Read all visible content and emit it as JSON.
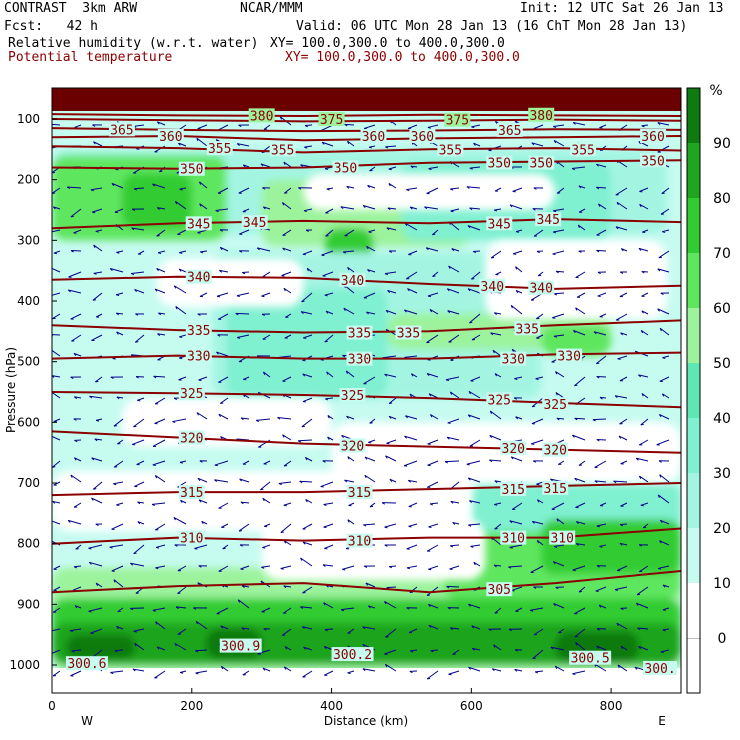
{
  "header": {
    "model": "CONTRAST  3km ARW",
    "center": "NCAR/MMM",
    "init": "Init: 12 UTC Sat 26 Jan 13",
    "fcst": "Fcst:   42 h",
    "valid": "Valid: 06 UTC Mon 28 Jan 13 (16 ChT Mon 28 Jan 13)",
    "field1": "Relative humidity (w.r.t. water)",
    "field1_xy": "XY= 100.0,300.0 to 400.0,300.0",
    "field2": "Potential temperature",
    "field2_xy": "XY= 100.0,300.0 to 400.0,300.0"
  },
  "colors": {
    "isentrope": "#8b0000",
    "wind": "#00008b",
    "rh_scale": [
      "#ffffff",
      "#c6fbf0",
      "#a3f5e2",
      "#7ff0d0",
      "#5fe6b5",
      "#9cf39c",
      "#5fe65f",
      "#31cc31",
      "#1fa51f",
      "#0f7a0f"
    ]
  },
  "chart_data": {
    "type": "heatmap",
    "xlabel": "Distance (km)",
    "ylabel": "Pressure (hPa)",
    "xlim": [
      0,
      900
    ],
    "ylim": [
      1000,
      50
    ],
    "x_ticks": [
      0,
      200,
      400,
      600,
      800
    ],
    "y_ticks": [
      100,
      200,
      300,
      400,
      500,
      600,
      700,
      800,
      900,
      1000
    ],
    "x_end_labels": {
      "left": "W",
      "right": "E"
    },
    "colorbar": {
      "unit": "%",
      "ticks": [
        0,
        10,
        20,
        30,
        40,
        50,
        60,
        70,
        80,
        90
      ]
    },
    "isentropes": [
      {
        "theta": 380,
        "p": [
          92,
          94,
          95,
          93,
          94,
          95
        ]
      },
      {
        "theta": 375,
        "p": [
          100,
          102,
          104,
          103,
          101,
          103
        ]
      },
      {
        "theta": 365,
        "p": [
          115,
          118,
          120,
          119,
          117,
          118
        ]
      },
      {
        "theta": 360,
        "p": [
          130,
          128,
          135,
          132,
          130,
          128
        ]
      },
      {
        "theta": 355,
        "p": [
          145,
          148,
          155,
          150,
          148,
          152
        ]
      },
      {
        "theta": 350,
        "p": [
          180,
          182,
          180,
          172,
          170,
          168
        ]
      },
      {
        "theta": 345,
        "p": [
          280,
          272,
          268,
          272,
          265,
          270
        ]
      },
      {
        "theta": 340,
        "p": [
          365,
          360,
          362,
          372,
          380,
          375
        ]
      },
      {
        "theta": 335,
        "p": [
          440,
          448,
          452,
          450,
          440,
          432
        ]
      },
      {
        "theta": 330,
        "p": [
          495,
          490,
          495,
          495,
          488,
          485
        ]
      },
      {
        "theta": 325,
        "p": [
          550,
          552,
          555,
          560,
          568,
          575
        ]
      },
      {
        "theta": 320,
        "p": [
          615,
          625,
          635,
          640,
          645,
          650
        ]
      },
      {
        "theta": 315,
        "p": [
          720,
          715,
          715,
          710,
          705,
          700
        ]
      },
      {
        "theta": 310,
        "p": [
          800,
          790,
          795,
          790,
          790,
          775
        ]
      },
      {
        "theta": 305,
        "p": [
          880,
          870,
          865,
          880,
          865,
          845
        ]
      }
    ],
    "contour_labels": [
      {
        "text": "380",
        "x": 300,
        "p": 94,
        "boxed": true
      },
      {
        "text": "375",
        "x": 400,
        "p": 100,
        "boxed": true
      },
      {
        "text": "375",
        "x": 580,
        "p": 101,
        "boxed": true
      },
      {
        "text": "380",
        "x": 700,
        "p": 93,
        "boxed": true
      },
      {
        "text": "365",
        "x": 100,
        "p": 117,
        "boxed": false
      },
      {
        "text": "360",
        "x": 170,
        "p": 128,
        "boxed": false
      },
      {
        "text": "360",
        "x": 460,
        "p": 128,
        "boxed": false
      },
      {
        "text": "360",
        "x": 530,
        "p": 128,
        "boxed": false
      },
      {
        "text": "365",
        "x": 655,
        "p": 118,
        "boxed": false
      },
      {
        "text": "360",
        "x": 860,
        "p": 128,
        "boxed": false
      },
      {
        "text": "355",
        "x": 240,
        "p": 148,
        "boxed": false
      },
      {
        "text": "355",
        "x": 330,
        "p": 150,
        "boxed": false
      },
      {
        "text": "355",
        "x": 570,
        "p": 150,
        "boxed": false
      },
      {
        "text": "355",
        "x": 760,
        "p": 150,
        "boxed": false
      },
      {
        "text": "350",
        "x": 200,
        "p": 182,
        "boxed": false
      },
      {
        "text": "350",
        "x": 420,
        "p": 180,
        "boxed": false
      },
      {
        "text": "350",
        "x": 640,
        "p": 172,
        "boxed": false
      },
      {
        "text": "350",
        "x": 700,
        "p": 172,
        "boxed": false
      },
      {
        "text": "350",
        "x": 860,
        "p": 168,
        "boxed": false
      },
      {
        "text": "345",
        "x": 210,
        "p": 272,
        "boxed": false
      },
      {
        "text": "345",
        "x": 290,
        "p": 270,
        "boxed": false
      },
      {
        "text": "345",
        "x": 640,
        "p": 272,
        "boxed": false
      },
      {
        "text": "345",
        "x": 710,
        "p": 265,
        "boxed": false
      },
      {
        "text": "340",
        "x": 210,
        "p": 360,
        "boxed": false
      },
      {
        "text": "340",
        "x": 430,
        "p": 365,
        "boxed": false
      },
      {
        "text": "340",
        "x": 630,
        "p": 375,
        "boxed": false
      },
      {
        "text": "340",
        "x": 700,
        "p": 378,
        "boxed": false
      },
      {
        "text": "335",
        "x": 210,
        "p": 448,
        "boxed": false
      },
      {
        "text": "335",
        "x": 440,
        "p": 452,
        "boxed": false
      },
      {
        "text": "335",
        "x": 510,
        "p": 452,
        "boxed": false
      },
      {
        "text": "335",
        "x": 680,
        "p": 445,
        "boxed": false
      },
      {
        "text": "330",
        "x": 210,
        "p": 490,
        "boxed": false
      },
      {
        "text": "330",
        "x": 440,
        "p": 495,
        "boxed": false
      },
      {
        "text": "330",
        "x": 660,
        "p": 495,
        "boxed": false
      },
      {
        "text": "330",
        "x": 740,
        "p": 490,
        "boxed": false
      },
      {
        "text": "325",
        "x": 200,
        "p": 552,
        "boxed": false
      },
      {
        "text": "325",
        "x": 430,
        "p": 555,
        "boxed": false
      },
      {
        "text": "325",
        "x": 640,
        "p": 562,
        "boxed": false
      },
      {
        "text": "325",
        "x": 720,
        "p": 570,
        "boxed": false
      },
      {
        "text": "320",
        "x": 200,
        "p": 625,
        "boxed": false
      },
      {
        "text": "320",
        "x": 430,
        "p": 638,
        "boxed": false
      },
      {
        "text": "320",
        "x": 660,
        "p": 642,
        "boxed": false
      },
      {
        "text": "320",
        "x": 720,
        "p": 645,
        "boxed": false
      },
      {
        "text": "315",
        "x": 200,
        "p": 715,
        "boxed": false
      },
      {
        "text": "315",
        "x": 440,
        "p": 715,
        "boxed": false
      },
      {
        "text": "315",
        "x": 660,
        "p": 710,
        "boxed": false
      },
      {
        "text": "315",
        "x": 720,
        "p": 708,
        "boxed": false
      },
      {
        "text": "310",
        "x": 200,
        "p": 790,
        "boxed": false
      },
      {
        "text": "310",
        "x": 440,
        "p": 795,
        "boxed": false
      },
      {
        "text": "310",
        "x": 660,
        "p": 790,
        "boxed": false
      },
      {
        "text": "310",
        "x": 730,
        "p": 790,
        "boxed": false
      },
      {
        "text": "305",
        "x": 640,
        "p": 875,
        "boxed": false
      },
      {
        "text": "300.9",
        "x": 270,
        "p": 968,
        "boxed": false
      },
      {
        "text": "300.2",
        "x": 430,
        "p": 982,
        "boxed": false
      },
      {
        "text": "300.5",
        "x": 770,
        "p": 988,
        "boxed": false
      },
      {
        "text": "300.6",
        "x": 50,
        "p": 997,
        "boxed": false
      },
      {
        "text": "300.",
        "x": 870,
        "p": 1005,
        "boxed": false
      }
    ]
  }
}
